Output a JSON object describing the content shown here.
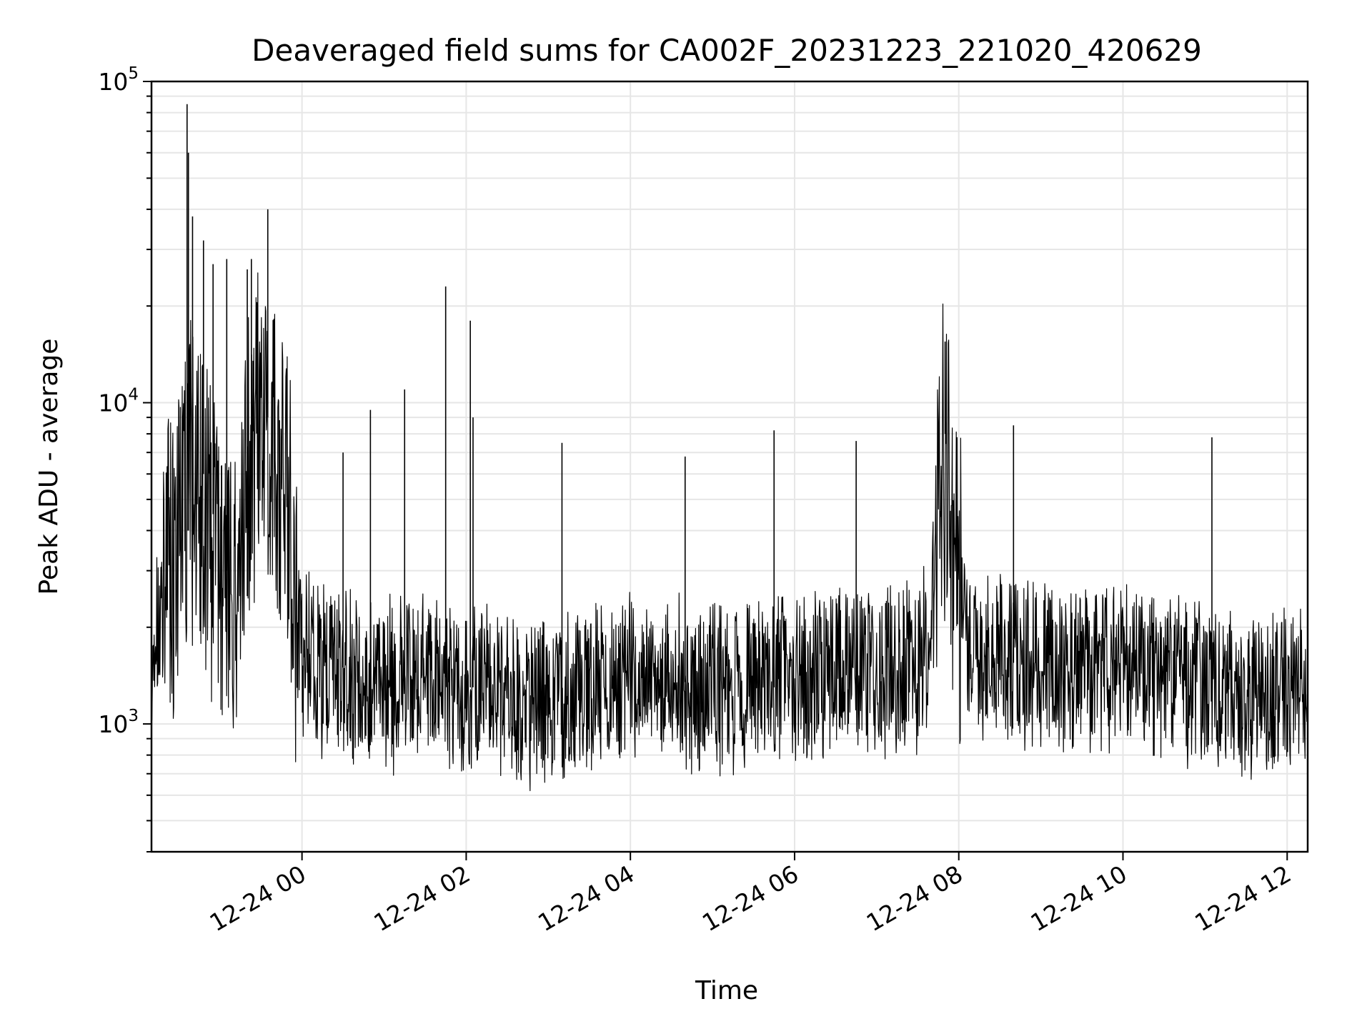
{
  "chart_data": {
    "type": "line",
    "title": "Deaveraged field sums for CA002F_20231223_221020_420629",
    "xlabel": "Time",
    "ylabel": "Peak ADU - average",
    "yscale": "log",
    "ylim": [
      400,
      100000
    ],
    "xlim": [
      "2023-12-23 22:10",
      "2023-12-24 12:15"
    ],
    "grid": true,
    "line_color": "#000000",
    "x_ticks": [
      {
        "value": "2023-12-24 00:00",
        "label": "12-24 00"
      },
      {
        "value": "2023-12-24 02:00",
        "label": "12-24 02"
      },
      {
        "value": "2023-12-24 04:00",
        "label": "12-24 04"
      },
      {
        "value": "2023-12-24 06:00",
        "label": "12-24 06"
      },
      {
        "value": "2023-12-24 08:00",
        "label": "12-24 08"
      },
      {
        "value": "2023-12-24 10:00",
        "label": "12-24 10"
      },
      {
        "value": "2023-12-24 12:00",
        "label": "12-24 12"
      }
    ],
    "y_ticks": [
      {
        "value": 1000,
        "label_base": "10",
        "label_exp": "3"
      },
      {
        "value": 10000,
        "label_base": "10",
        "label_exp": "4"
      },
      {
        "value": 100000,
        "label_base": "10",
        "label_exp": "5"
      }
    ],
    "series": [
      {
        "x": [
          "2023-12-23 22:10",
          "2023-12-23 22:20",
          "2023-12-23 22:30",
          "2023-12-23 22:40",
          "2023-12-23 22:50",
          "2023-12-23 23:00",
          "2023-12-23 23:10",
          "2023-12-23 23:20",
          "2023-12-23 23:30",
          "2023-12-23 23:40",
          "2023-12-23 23:50",
          "2023-12-24 00:00",
          "2023-12-24 00:15",
          "2023-12-24 00:30",
          "2023-12-24 00:45",
          "2023-12-24 01:00",
          "2023-12-24 01:15",
          "2023-12-24 01:30",
          "2023-12-24 01:45",
          "2023-12-24 02:00",
          "2023-12-24 02:15",
          "2023-12-24 02:30",
          "2023-12-24 02:45",
          "2023-12-24 03:00",
          "2023-12-24 03:15",
          "2023-12-24 03:30",
          "2023-12-24 03:45",
          "2023-12-24 04:00",
          "2023-12-24 04:15",
          "2023-12-24 04:30",
          "2023-12-24 04:45",
          "2023-12-24 05:00",
          "2023-12-24 05:15",
          "2023-12-24 05:30",
          "2023-12-24 05:45",
          "2023-12-24 06:00",
          "2023-12-24 06:15",
          "2023-12-24 06:30",
          "2023-12-24 06:45",
          "2023-12-24 07:00",
          "2023-12-24 07:15",
          "2023-12-24 07:30",
          "2023-12-24 07:40",
          "2023-12-24 07:48",
          "2023-12-24 07:55",
          "2023-12-24 08:05",
          "2023-12-24 08:15",
          "2023-12-24 08:30",
          "2023-12-24 08:45",
          "2023-12-24 09:00",
          "2023-12-24 09:15",
          "2023-12-24 09:30",
          "2023-12-24 09:45",
          "2023-12-24 10:00",
          "2023-12-24 10:15",
          "2023-12-24 10:30",
          "2023-12-24 10:45",
          "2023-12-24 11:00",
          "2023-12-24 11:15",
          "2023-12-24 11:30",
          "2023-12-24 11:45",
          "2023-12-24 12:00",
          "2023-12-24 12:15"
        ],
        "y": [
          1400,
          2500,
          4000,
          6000,
          4500,
          3000,
          2500,
          6000,
          9000,
          7000,
          4000,
          1600,
          1500,
          1450,
          1400,
          1350,
          1300,
          1400,
          1350,
          1300,
          1250,
          1200,
          1150,
          1200,
          1250,
          1300,
          1350,
          1350,
          1300,
          1350,
          1300,
          1300,
          1250,
          1300,
          1350,
          1300,
          1400,
          1450,
          1500,
          1450,
          1500,
          1550,
          1800,
          8000,
          3500,
          1800,
          1600,
          1550,
          1500,
          1500,
          1450,
          1500,
          1500,
          1450,
          1500,
          1400,
          1400,
          1350,
          1250,
          1200,
          1250,
          1250,
          1300
        ]
      }
    ],
    "spikes": [
      {
        "x": "2023-12-23 22:36",
        "y": 85000
      },
      {
        "x": "2023-12-23 22:37",
        "y": 60000
      },
      {
        "x": "2023-12-23 22:40",
        "y": 38000
      },
      {
        "x": "2023-12-23 22:48",
        "y": 32000
      },
      {
        "x": "2023-12-23 22:55",
        "y": 27000
      },
      {
        "x": "2023-12-23 23:05",
        "y": 28000
      },
      {
        "x": "2023-12-23 23:20",
        "y": 26000
      },
      {
        "x": "2023-12-23 23:23",
        "y": 28000
      },
      {
        "x": "2023-12-23 23:35",
        "y": 40000
      },
      {
        "x": "2023-12-24 00:30",
        "y": 7000
      },
      {
        "x": "2023-12-24 00:50",
        "y": 9500
      },
      {
        "x": "2023-12-24 01:15",
        "y": 11000
      },
      {
        "x": "2023-12-24 01:45",
        "y": 23000
      },
      {
        "x": "2023-12-24 02:03",
        "y": 18000
      },
      {
        "x": "2023-12-24 02:05",
        "y": 9000
      },
      {
        "x": "2023-12-24 03:10",
        "y": 7500
      },
      {
        "x": "2023-12-24 04:40",
        "y": 6800
      },
      {
        "x": "2023-12-24 05:45",
        "y": 8200
      },
      {
        "x": "2023-12-24 06:45",
        "y": 7600
      },
      {
        "x": "2023-12-24 07:50",
        "y": 15500
      },
      {
        "x": "2023-12-24 08:40",
        "y": 8500
      },
      {
        "x": "2023-12-24 11:05",
        "y": 7800
      }
    ]
  }
}
